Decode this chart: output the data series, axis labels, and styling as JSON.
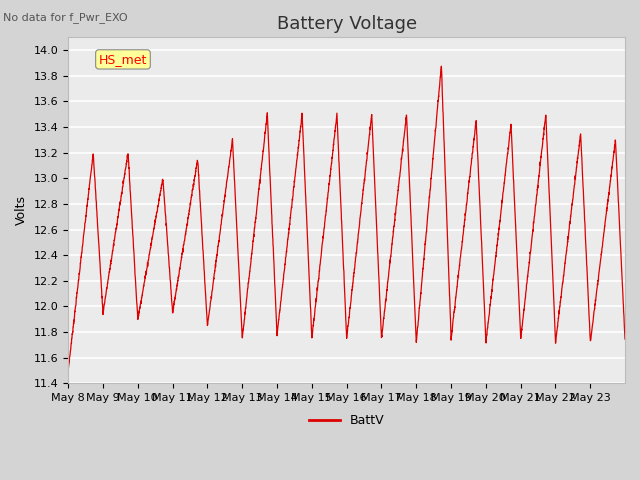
{
  "title": "Battery Voltage",
  "ylabel": "Volts",
  "annotation": "No data for f_Pwr_EXO",
  "legend_box_label": "HS_met",
  "legend_line_label": "BattV",
  "line_color": "#dd0000",
  "fig_facecolor": "#d4d4d4",
  "plot_facecolor": "#ebebeb",
  "grid_color": "#ffffff",
  "ylim": [
    11.4,
    14.1
  ],
  "yticks": [
    11.4,
    11.6,
    11.8,
    12.0,
    12.2,
    12.4,
    12.6,
    12.8,
    13.0,
    13.2,
    13.4,
    13.6,
    13.8,
    14.0
  ],
  "xticklabels": [
    "May 8",
    "May 9",
    "May 10",
    "May 11",
    "May 12",
    "May 13",
    "May 14",
    "May 15",
    "May 16",
    "May 17",
    "May 18",
    "May 19",
    "May 20",
    "May 21",
    "May 22",
    "May 23"
  ],
  "n_days": 16,
  "peaks": [
    13.2,
    13.2,
    13.0,
    13.15,
    13.3,
    13.5,
    13.5,
    13.5,
    13.5,
    13.5,
    13.88,
    13.45,
    13.42,
    13.5,
    13.35,
    13.3
  ],
  "troughs": [
    11.5,
    11.95,
    11.9,
    11.95,
    11.85,
    11.75,
    11.78,
    11.75,
    11.75,
    11.75,
    11.72,
    11.75,
    11.72,
    11.75,
    11.72,
    11.72
  ],
  "title_fontsize": 13,
  "label_fontsize": 9,
  "tick_fontsize": 8,
  "annotation_fontsize": 8,
  "legend_fontsize": 9
}
